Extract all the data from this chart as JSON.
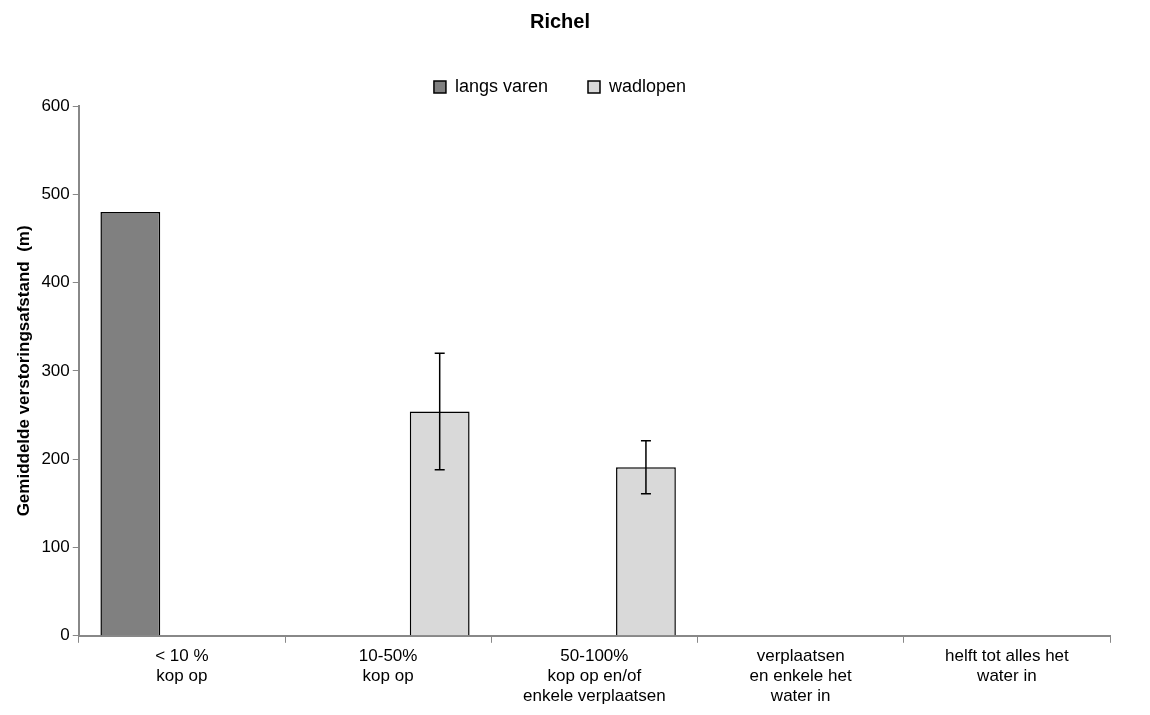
{
  "chart_data": {
    "type": "bar",
    "title": "Richel",
    "ylabel": "Gemiddelde verstoringsafstand  (m)",
    "categories": [
      "< 10 %\nkop op",
      "10-50%\nkop op",
      "50-100%\nkop op en/of\nenkele verplaatsen",
      "verplaatsen\nen enkele het\nwater in",
      "helft tot alles het\nwater in"
    ],
    "series": [
      {
        "name": "langs varen",
        "color": "#808080",
        "values": [
          480,
          null,
          null,
          null,
          null
        ]
      },
      {
        "name": "wadlopen",
        "color": "#d9d9d9",
        "values": [
          null,
          254,
          191,
          null,
          null
        ],
        "errors": [
          null,
          66,
          30,
          null,
          null
        ]
      }
    ],
    "ylim": [
      0,
      600
    ],
    "yticks": [
      0,
      100,
      200,
      300,
      400,
      500,
      600
    ],
    "grid": false,
    "legend": "top"
  }
}
